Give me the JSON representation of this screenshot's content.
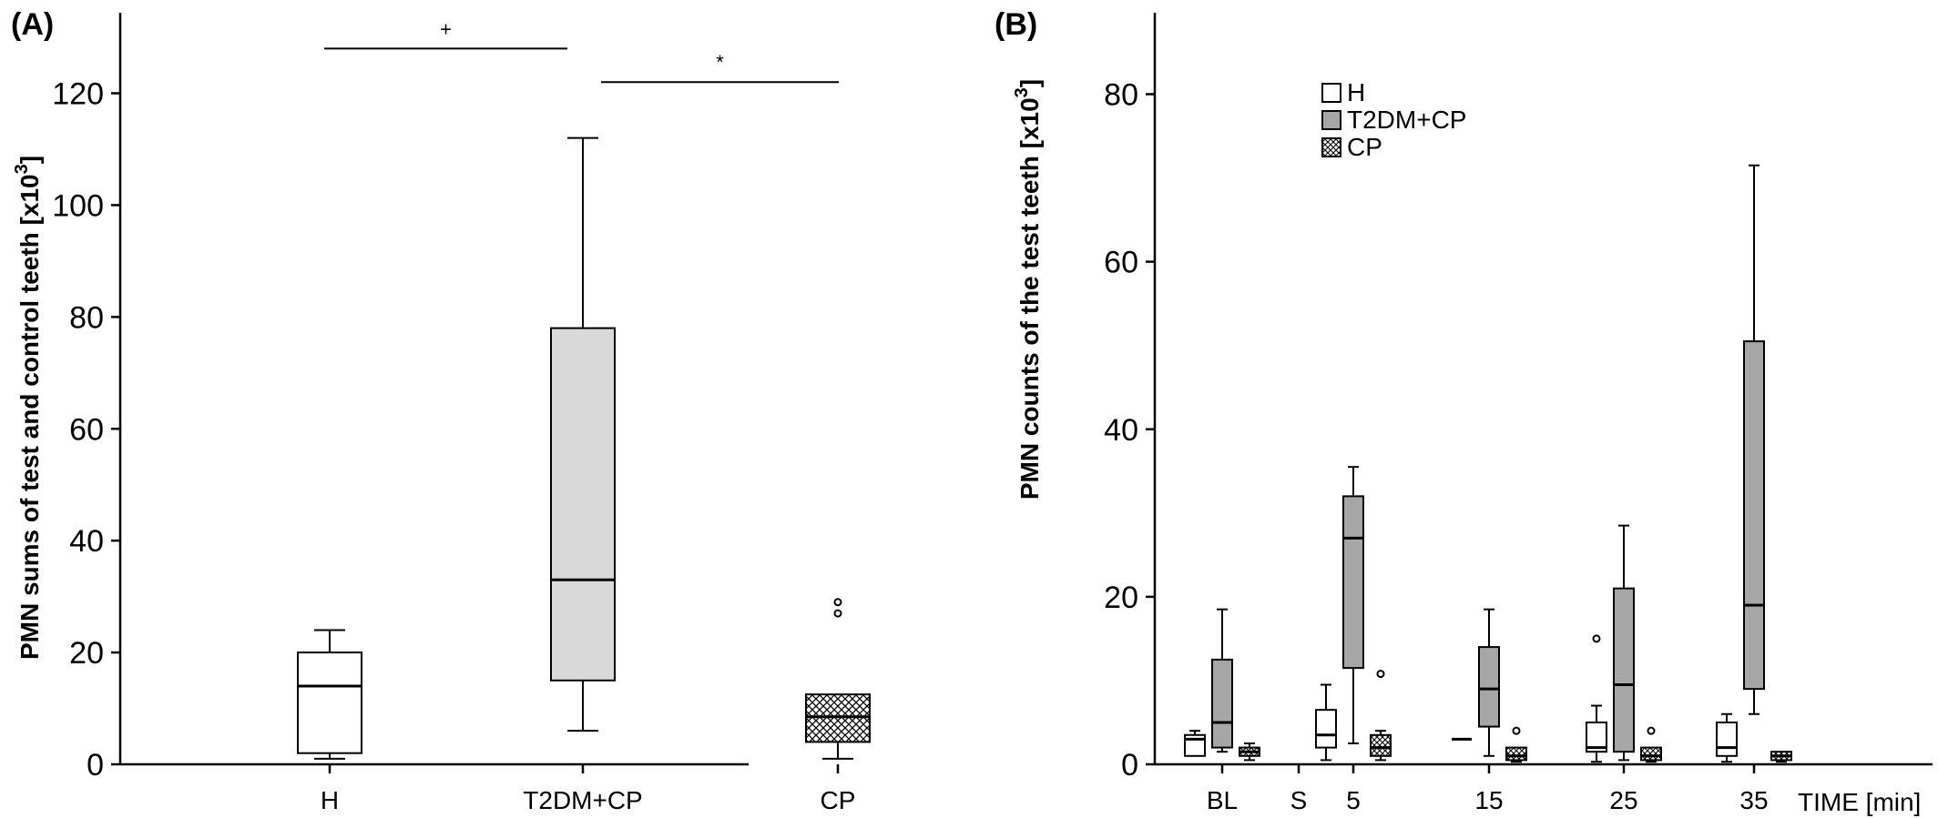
{
  "chart_data": [
    {
      "type": "box",
      "panel_label": "(A)",
      "ylabel": "PMN sums of test and control teeth [x10",
      "ylabel_superscript": "3",
      "ylabel_close": "]",
      "ylim": [
        0,
        132
      ],
      "yticks": [
        0,
        20,
        40,
        60,
        80,
        100,
        120
      ],
      "categories": [
        "H",
        "T2DM+CP",
        "CP"
      ],
      "boxes": [
        {
          "category": "H",
          "min": 1,
          "q1": 2,
          "median": 14,
          "q3": 20,
          "max": 24,
          "outliers": [],
          "fill": "#ffffff",
          "pattern": "none"
        },
        {
          "category": "T2DM+CP",
          "min": 6,
          "q1": 15,
          "median": 33,
          "q3": 78,
          "max": 112,
          "outliers": [],
          "fill": "#d9d9d9",
          "pattern": "none"
        },
        {
          "category": "CP",
          "min": 1,
          "q1": 4,
          "median": 8.5,
          "q3": 12.5,
          "max": 12.5,
          "outliers": [
            27,
            29
          ],
          "fill": "#ffffff",
          "pattern": "crosshatch"
        }
      ],
      "significance": [
        {
          "from": "H",
          "to": "T2DM+CP",
          "label": "+",
          "y": 128
        },
        {
          "from": "T2DM+CP",
          "to": "CP",
          "label": "*",
          "y": 122
        }
      ]
    },
    {
      "type": "box",
      "panel_label": "(B)",
      "ylabel": "PMN counts of the test teeth [x10",
      "ylabel_superscript": "3",
      "ylabel_close": "]",
      "ylim": [
        0,
        88
      ],
      "yticks": [
        0,
        20,
        40,
        60,
        80
      ],
      "x_tick_labels": [
        "BL",
        "S",
        "5",
        "15",
        "25",
        "35"
      ],
      "xlabel": "TIME [min]",
      "legend": {
        "position": "top-center",
        "entries": [
          {
            "name": "H",
            "fill": "#ffffff",
            "pattern": "none"
          },
          {
            "name": "T2DM+CP",
            "fill": "#a6a6a6",
            "pattern": "none"
          },
          {
            "name": "CP",
            "fill": "#ffffff",
            "pattern": "crosshatch"
          }
        ]
      },
      "groups": [
        {
          "time": "BL",
          "boxes": [
            {
              "series": "H",
              "min": 1,
              "q1": 1,
              "median": 3,
              "q3": 3.5,
              "max": 4,
              "outliers": []
            },
            {
              "series": "T2DM+CP",
              "min": 1.5,
              "q1": 2,
              "median": 5,
              "q3": 12.5,
              "max": 18.5,
              "outliers": []
            },
            {
              "series": "CP",
              "min": 0.5,
              "q1": 1,
              "median": 1.5,
              "q3": 2,
              "max": 2.5,
              "outliers": []
            }
          ]
        },
        {
          "time": "5",
          "boxes": [
            {
              "series": "H",
              "min": 0.5,
              "q1": 2,
              "median": 3.5,
              "q3": 6.5,
              "max": 9.5,
              "outliers": []
            },
            {
              "series": "T2DM+CP",
              "min": 2.5,
              "q1": 11.5,
              "median": 27,
              "q3": 32,
              "max": 35.5,
              "outliers": []
            },
            {
              "series": "CP",
              "min": 0.5,
              "q1": 1,
              "median": 2,
              "q3": 3.5,
              "max": 4,
              "outliers": [
                10.8
              ]
            }
          ]
        },
        {
          "time": "15",
          "boxes": [
            {
              "series": "H",
              "min": 3,
              "q1": 3,
              "median": 3,
              "q3": 3,
              "max": 3,
              "outliers": []
            },
            {
              "series": "T2DM+CP",
              "min": 1,
              "q1": 4.5,
              "median": 9,
              "q3": 14,
              "max": 18.5,
              "outliers": []
            },
            {
              "series": "CP",
              "min": 0.3,
              "q1": 0.5,
              "median": 1,
              "q3": 2,
              "max": 2,
              "outliers": [
                4
              ]
            }
          ]
        },
        {
          "time": "25",
          "boxes": [
            {
              "series": "H",
              "min": 0.3,
              "q1": 1.5,
              "median": 2,
              "q3": 5,
              "max": 7,
              "outliers": [
                15
              ]
            },
            {
              "series": "T2DM+CP",
              "min": 0.5,
              "q1": 1.5,
              "median": 9.5,
              "q3": 21,
              "max": 28.5,
              "outliers": []
            },
            {
              "series": "CP",
              "min": 0.3,
              "q1": 0.5,
              "median": 1,
              "q3": 2,
              "max": 2,
              "outliers": [
                4
              ]
            }
          ]
        },
        {
          "time": "35",
          "boxes": [
            {
              "series": "H",
              "min": 0.3,
              "q1": 1,
              "median": 2,
              "q3": 5,
              "max": 6,
              "outliers": []
            },
            {
              "series": "T2DM+CP",
              "min": 6,
              "q1": 9,
              "median": 19,
              "q3": 50.5,
              "max": 71.5,
              "outliers": []
            },
            {
              "series": "CP",
              "min": 0.3,
              "q1": 0.5,
              "median": 1,
              "q3": 1.5,
              "max": 1.5,
              "outliers": []
            }
          ]
        }
      ]
    }
  ]
}
